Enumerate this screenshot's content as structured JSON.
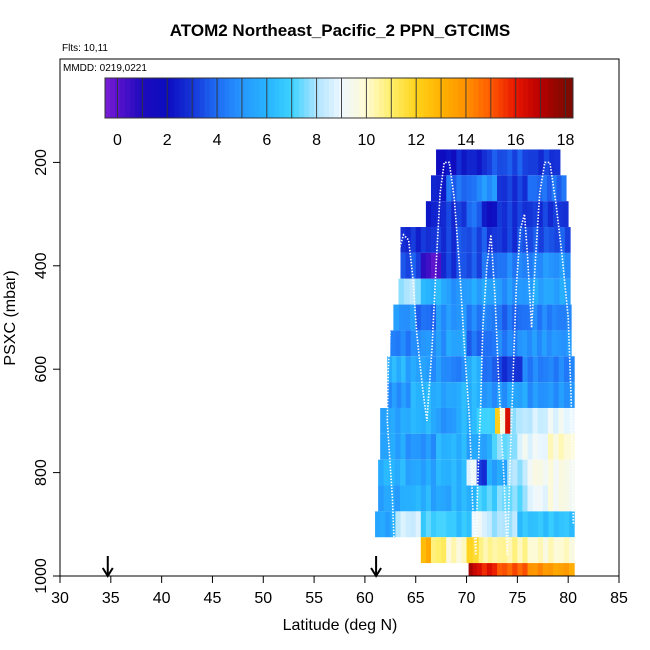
{
  "chart_data": {
    "type": "heatmap",
    "title": "ATOM2 Northeast_Pacific_2 PPN_GTCIMS",
    "flights_note": "Flts: 10,11",
    "dates_note": "MMDD: 0219,0221",
    "xlabel": "Latitude (deg N)",
    "ylabel": "PSXC (mbar)",
    "xlim": [
      30,
      85
    ],
    "ylim": [
      1000,
      0
    ],
    "x_ticks": [
      "30",
      "35",
      "40",
      "45",
      "50",
      "55",
      "60",
      "65",
      "70",
      "75",
      "80",
      "85"
    ],
    "y_ticks": [
      "200",
      "400",
      "600",
      "800",
      "1000"
    ],
    "colorbar": {
      "range": [
        -0.5,
        18.3
      ],
      "ticks": [
        "0",
        "2",
        "4",
        "6",
        "8",
        "10",
        "12",
        "14",
        "16",
        "18"
      ]
    },
    "arrows_at_latitude": [
      34.7,
      61.1
    ],
    "colors": {
      "c-0.5": "#7b1fd6",
      "c0": "#5a12cc",
      "c1": "#1d0bbd",
      "c2": "#0c0cc0",
      "c3": "#1535d8",
      "c4": "#1f6df5",
      "c5": "#2596ff",
      "c6": "#27b4ff",
      "c7": "#3cd2ff",
      "c8": "#aee4ff",
      "c9": "#eef8ff",
      "c10": "#fffad2",
      "c11": "#ffef6a",
      "c12": "#ffd21c",
      "c13": "#ffb200",
      "c14": "#ff9200",
      "c15": "#ff5a00",
      "c16": "#e81500",
      "c17": "#b80000",
      "c18": "#7e0a00"
    },
    "grid_bins": [
      {
        "p": 200,
        "segments": [
          [
            67,
            69,
            2
          ],
          [
            69,
            72,
            2.5
          ],
          [
            72,
            76,
            3.5
          ],
          [
            76,
            79.2,
            3
          ]
        ]
      },
      {
        "p": 250,
        "segments": [
          [
            66.5,
            68,
            2.5
          ],
          [
            68,
            71,
            4
          ],
          [
            71,
            73,
            5
          ],
          [
            73,
            76,
            3
          ],
          [
            76,
            79.8,
            4
          ]
        ]
      },
      {
        "p": 300,
        "segments": [
          [
            66,
            67.5,
            2.5
          ],
          [
            67.5,
            70,
            3
          ],
          [
            70,
            71.5,
            4
          ],
          [
            71.5,
            73,
            2
          ],
          [
            73,
            76,
            3
          ],
          [
            76,
            80,
            3
          ]
        ]
      },
      {
        "p": 350,
        "segments": [
          [
            63.5,
            66,
            2.8
          ],
          [
            66,
            69,
            3
          ],
          [
            69,
            72,
            3.5
          ],
          [
            72,
            75,
            3
          ],
          [
            75,
            80.2,
            3.5
          ]
        ]
      },
      {
        "p": 400,
        "segments": [
          [
            63.5,
            65.5,
            3.5
          ],
          [
            65.5,
            66.5,
            0.5
          ],
          [
            66.5,
            67.5,
            0
          ],
          [
            67.5,
            69,
            3
          ],
          [
            69,
            71.5,
            3.5
          ],
          [
            71.5,
            73.5,
            4
          ],
          [
            73.5,
            77,
            4.5
          ],
          [
            77,
            80.2,
            5
          ]
        ]
      },
      {
        "p": 450,
        "segments": [
          [
            63.3,
            65.5,
            8
          ],
          [
            65.5,
            68,
            6
          ],
          [
            68,
            70,
            5
          ],
          [
            70,
            73,
            5.5
          ],
          [
            73,
            76,
            5
          ],
          [
            76,
            80.2,
            5.5
          ]
        ]
      },
      {
        "p": 500,
        "segments": [
          [
            62.8,
            65,
            5
          ],
          [
            65,
            67,
            4
          ],
          [
            67,
            70,
            5
          ],
          [
            70,
            73,
            4.5
          ],
          [
            73,
            76,
            4
          ],
          [
            76,
            80.3,
            4.5
          ]
        ]
      },
      {
        "p": 550,
        "segments": [
          [
            62.5,
            65,
            4.5
          ],
          [
            65,
            68,
            5
          ],
          [
            68,
            70,
            5.5
          ],
          [
            70,
            72.5,
            4
          ],
          [
            72.5,
            75,
            4.5
          ],
          [
            75,
            80.3,
            5
          ]
        ]
      },
      {
        "p": 600,
        "segments": [
          [
            62.2,
            64,
            6
          ],
          [
            64,
            66,
            5.5
          ],
          [
            66,
            68,
            5
          ],
          [
            68,
            70,
            4.5
          ],
          [
            70,
            71.5,
            6
          ],
          [
            71.5,
            73,
            4
          ],
          [
            73,
            75.5,
            3
          ],
          [
            75.5,
            80.6,
            4.5
          ]
        ]
      },
      {
        "p": 650,
        "segments": [
          [
            62.2,
            64.5,
            5
          ],
          [
            64.5,
            67,
            6
          ],
          [
            67,
            69,
            5.5
          ],
          [
            69,
            71.5,
            6
          ],
          [
            71.5,
            74,
            5
          ],
          [
            74,
            76,
            5.5
          ],
          [
            76,
            80.6,
            5
          ]
        ]
      },
      {
        "p": 700,
        "segments": [
          [
            61.5,
            64,
            5.5
          ],
          [
            64,
            67,
            6
          ],
          [
            67,
            69,
            5
          ],
          [
            69,
            71,
            6
          ],
          [
            71,
            72.8,
            7
          ],
          [
            72.8,
            73.3,
            12
          ],
          [
            73.3,
            73.8,
            10
          ],
          [
            73.8,
            74.3,
            16
          ],
          [
            74.3,
            76,
            8
          ],
          [
            76,
            78,
            8.5
          ],
          [
            78,
            80.6,
            9
          ]
        ]
      },
      {
        "p": 750,
        "segments": [
          [
            61.5,
            64,
            5.5
          ],
          [
            64,
            67,
            5
          ],
          [
            67,
            70,
            6
          ],
          [
            70,
            72.5,
            5.5
          ],
          [
            72.5,
            75,
            7.5
          ],
          [
            75,
            78,
            9
          ],
          [
            78,
            80.6,
            10
          ]
        ]
      },
      {
        "p": 800,
        "segments": [
          [
            61.3,
            64,
            6
          ],
          [
            64,
            67,
            5.5
          ],
          [
            67,
            70,
            6
          ],
          [
            70,
            71,
            9
          ],
          [
            71,
            72,
            3
          ],
          [
            72,
            74,
            5.5
          ],
          [
            74,
            76,
            8
          ],
          [
            76,
            80.6,
            9.5
          ]
        ]
      },
      {
        "p": 850,
        "segments": [
          [
            61.3,
            64,
            5.5
          ],
          [
            64,
            66.5,
            6
          ],
          [
            66.5,
            68.5,
            5.5
          ],
          [
            68.5,
            71,
            6
          ],
          [
            71,
            73,
            7
          ],
          [
            73,
            76,
            7.5
          ],
          [
            76,
            78,
            9
          ],
          [
            78,
            80.6,
            9.5
          ]
        ]
      },
      {
        "p": 900,
        "segments": [
          [
            61,
            63,
            5.5
          ],
          [
            63,
            65.5,
            8.5
          ],
          [
            65.5,
            68.5,
            7
          ],
          [
            68.5,
            70.5,
            6.5
          ],
          [
            70.5,
            72,
            9
          ],
          [
            72,
            75,
            8
          ],
          [
            75,
            80.6,
            6.5
          ]
        ]
      },
      {
        "p": 950,
        "segments": [
          [
            65.5,
            66.5,
            13
          ],
          [
            66.5,
            68,
            11
          ],
          [
            68,
            70,
            10
          ],
          [
            70,
            71.2,
            12
          ],
          [
            71.2,
            73,
            10.5
          ],
          [
            73,
            76,
            10.5
          ],
          [
            76,
            80.6,
            10
          ]
        ]
      },
      {
        "p": 1000,
        "segments": [
          [
            70.2,
            71,
            17
          ],
          [
            71,
            73,
            16
          ],
          [
            73,
            76,
            15
          ],
          [
            76,
            78,
            14
          ],
          [
            78,
            80.6,
            13.5
          ]
        ]
      }
    ],
    "flight_track": [
      [
        63.0,
        1000
      ],
      [
        62.7,
        850
      ],
      [
        62.2,
        700
      ],
      [
        62.3,
        600
      ],
      [
        62.6,
        480
      ],
      [
        63.2,
        380
      ],
      [
        63.8,
        340
      ],
      [
        64.3,
        350
      ],
      [
        64.7,
        420
      ],
      [
        65.1,
        530
      ],
      [
        65.7,
        640
      ],
      [
        66.1,
        700
      ],
      [
        66.6,
        560
      ],
      [
        67.0,
        400
      ],
      [
        67.4,
        260
      ],
      [
        67.8,
        200
      ],
      [
        68.3,
        200
      ],
      [
        68.8,
        270
      ],
      [
        69.3,
        400
      ],
      [
        69.8,
        560
      ],
      [
        70.3,
        700
      ],
      [
        70.6,
        860
      ],
      [
        70.9,
        960
      ],
      [
        71.1,
        820
      ],
      [
        71.4,
        660
      ],
      [
        71.6,
        520
      ],
      [
        72.0,
        400
      ],
      [
        72.4,
        340
      ],
      [
        72.8,
        460
      ],
      [
        73.2,
        640
      ],
      [
        73.7,
        820
      ],
      [
        74.0,
        960
      ],
      [
        74.3,
        780
      ],
      [
        74.6,
        600
      ],
      [
        74.9,
        440
      ],
      [
        75.3,
        330
      ],
      [
        75.7,
        300
      ],
      [
        76.0,
        380
      ],
      [
        76.4,
        520
      ],
      [
        76.8,
        380
      ],
      [
        77.2,
        260
      ],
      [
        77.7,
        200
      ],
      [
        78.2,
        200
      ],
      [
        78.8,
        280
      ],
      [
        79.4,
        380
      ],
      [
        80.0,
        500
      ],
      [
        80.3,
        660
      ],
      [
        80.5,
        900
      ]
    ]
  }
}
